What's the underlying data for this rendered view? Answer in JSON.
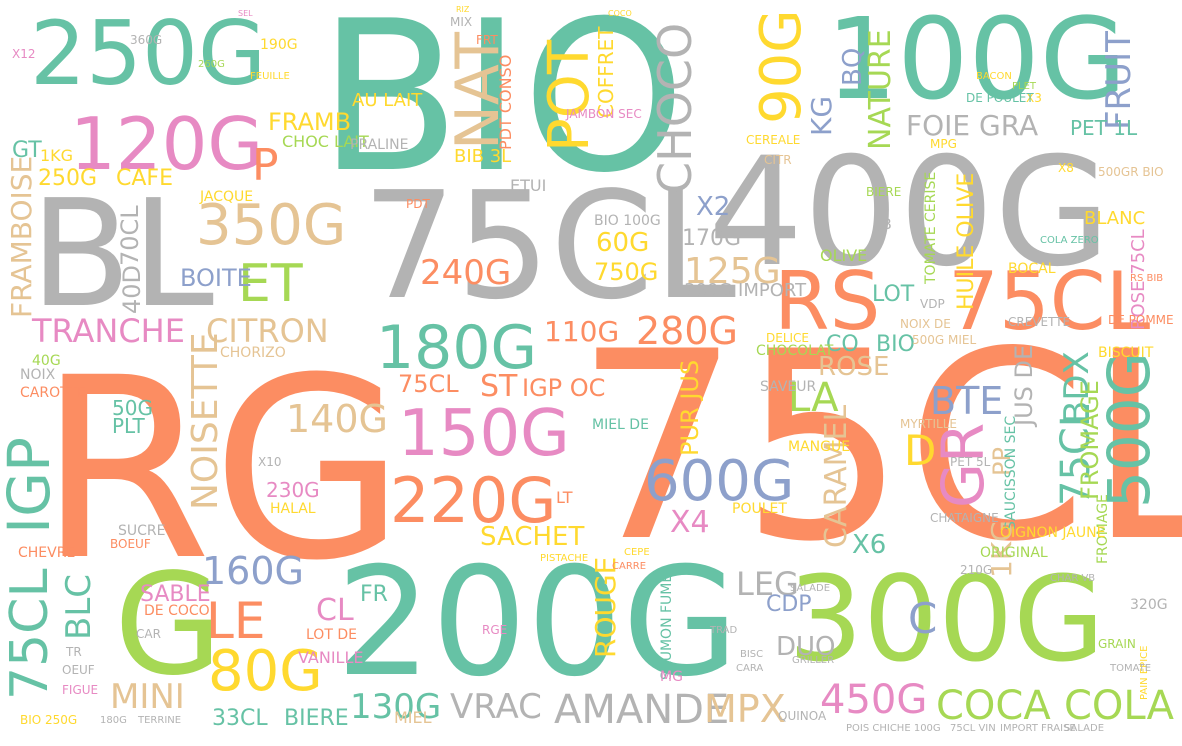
{
  "palette": {
    "teal": "#66c2a5",
    "orange": "#fc8d62",
    "blue": "#8da0cb",
    "pink": "#e78ac3",
    "green": "#a6d854",
    "yellow": "#ffd92f",
    "tan": "#e5c494",
    "gray": "#b3b3b3"
  },
  "words": [
    "BIO",
    "100G",
    "250G",
    "120G",
    "BL",
    "75CL",
    "400G",
    "RG",
    "75CL",
    "200G",
    "300G",
    "G",
    "RS",
    "75CL",
    "180G",
    "150G",
    "220G",
    "600G",
    "350G",
    "TRANCHE",
    "CITRON",
    "NAT",
    "POT",
    "90G",
    "CHOCO",
    "FRUIT",
    "NATURE",
    "FOIE GRA",
    "KG",
    "BQ",
    "P",
    "FRAMB",
    "ET",
    "500G",
    "GR",
    "BDX",
    "75CL",
    "BTE",
    "IGP",
    "75CL",
    "BLC",
    "MINI",
    "80G",
    "LE",
    "160G",
    "SABLE",
    "COCA",
    "COLA",
    "AMANDE",
    "VRAC",
    "130G",
    "450G",
    "MPX",
    "33CL",
    "BIERE",
    "ROUGE",
    "LEG",
    "X6",
    "NOISETTE",
    "140G",
    "240G",
    "125G",
    "750G",
    "60G",
    "110G",
    "280G",
    "LA",
    "CARAMEL",
    "ROSE",
    "PUR JUS",
    "SACHET",
    "X4",
    "X2",
    "170G",
    "BIO 100G",
    "300G IMPORT",
    "JUS DE",
    "FROMAGE",
    "1KG",
    "PP",
    "D",
    "C",
    "CDP",
    "DUO",
    "FRAMBOISE",
    "BOITE",
    "40D",
    "70CL",
    "CAFE",
    "250G",
    "GT",
    "1KG",
    "LOT",
    "BIO",
    "CO",
    "ST",
    "IGP OC",
    "BIB 3L",
    "ETUI",
    "COFFRET",
    "PDT CONSO",
    "AU LAIT",
    "CHOC LAIT",
    "PRALINE",
    "JACQUE",
    "ROSE 75CL",
    "BLANC",
    "HUILE OLIVE",
    "PET 1L",
    "MIEL",
    "TOMATE CERISE",
    "OLIVE",
    "LT",
    "MIEL DE",
    "CHORIZO",
    "75CL",
    "X10",
    "HALAL",
    "230G",
    "50G",
    "PLT",
    "NOIX",
    "CAROTTE",
    "40G",
    "CHEVRE",
    "BOEUF",
    "SUCRE",
    "DE COCO",
    "LOT DE",
    "VANILLE",
    "CL",
    "FR",
    "GRAIN",
    "POULET",
    "FROMAGE",
    "SAUCISSON SEC",
    "CHATAIGNE",
    "ORIGINAL",
    "OIGNON JAUNE",
    "320G",
    "BOCAL",
    "CREVETTE",
    "DE POMME",
    "BISCUIT",
    "PET 5L",
    "MYRTILLE",
    "SAVEUR",
    "MANGUE",
    "CHOCOLAT",
    "DELICE",
    "500G MIEL",
    "NOIX DE",
    "VDP",
    "X3",
    "X8",
    "500GR BIO",
    "RS BIB",
    "JB",
    "COLA ZERO",
    "CEREALE",
    "JAMBON SEC",
    "CITR",
    "PDT",
    "190G",
    "260G",
    "360G",
    "X12",
    "MIX",
    "FRT",
    "RIZ",
    "COCO",
    "SEL",
    "DE POULET",
    "BACON",
    "PLET",
    "MPG",
    "BIERE",
    "FEUILLE",
    "SAUMON FUME",
    "PISTACHE",
    "CEPE",
    "CARRE",
    "CHAR VB",
    "210G",
    "SALADE",
    "QUINOA",
    "GRILLER",
    "TRAD",
    "BISC",
    "CARA",
    "MG",
    "RGE",
    "FIGUE",
    "OEUF",
    "TR",
    "CAR",
    "BIO 250G",
    "180G",
    "TERRINE",
    "PAIN EPICE",
    "TOMATE",
    "POIS CHICHE 100G",
    "75CL VIN",
    "IMPORT FRAISE",
    "SALADE"
  ]
}
